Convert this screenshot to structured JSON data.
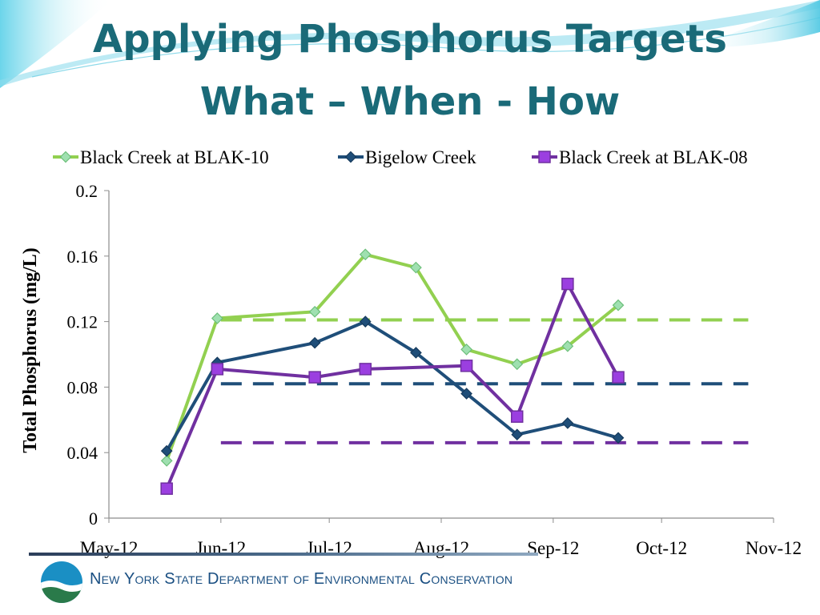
{
  "title": {
    "line1": "Applying Phosphorus Targets",
    "line2": "What – When - How"
  },
  "footer": {
    "org_name": "New York State Department of Environmental Conservation"
  },
  "chart_data": {
    "type": "line",
    "title": "",
    "ylabel": "Total Phosphorus (mg/L)",
    "xlabel": "",
    "ylim": [
      0,
      0.2
    ],
    "yticks": [
      0,
      0.04,
      0.08,
      0.12,
      0.16,
      0.2
    ],
    "ytick_labels": [
      "0",
      "0.04",
      "0.08",
      "0.12",
      "0.16",
      "0.2"
    ],
    "xlim": [
      "2012-05-01",
      "2012-11-01"
    ],
    "xticks": [
      "2012-05-01",
      "2012-06-01",
      "2012-07-01",
      "2012-08-01",
      "2012-09-01",
      "2012-10-01",
      "2012-11-01"
    ],
    "xtick_labels": [
      "May-12",
      "Jun-12",
      "Jul-12",
      "Aug-12",
      "Sep-12",
      "Oct-12",
      "Nov-12"
    ],
    "grid": false,
    "legend_position": "top",
    "series": [
      {
        "name": "Black Creek at BLAK-10",
        "color": "#92d050",
        "marker": "diamond",
        "x": [
          "2012-05-17",
          "2012-05-31",
          "2012-06-27",
          "2012-07-11",
          "2012-07-25",
          "2012-08-08",
          "2012-08-22",
          "2012-09-05",
          "2012-09-19"
        ],
        "y": [
          0.035,
          0.122,
          0.126,
          0.161,
          0.153,
          0.103,
          0.094,
          0.105,
          0.13
        ]
      },
      {
        "name": "Bigelow Creek",
        "color": "#1f4e79",
        "marker": "diamond",
        "x": [
          "2012-05-17",
          "2012-05-31",
          "2012-06-27",
          "2012-07-11",
          "2012-07-25",
          "2012-08-08",
          "2012-08-22",
          "2012-09-05",
          "2012-09-19"
        ],
        "y": [
          0.041,
          0.095,
          0.107,
          0.12,
          0.101,
          0.076,
          0.051,
          0.058,
          0.049
        ]
      },
      {
        "name": "Black Creek at BLAK-08",
        "color": "#7030a0",
        "marker": "square",
        "x": [
          "2012-05-17",
          "2012-05-31",
          "2012-06-27",
          "2012-07-11",
          "2012-08-08",
          "2012-08-22",
          "2012-09-05",
          "2012-09-19"
        ],
        "y": [
          0.018,
          0.091,
          0.086,
          0.091,
          0.093,
          0.062,
          0.143,
          0.086
        ]
      }
    ],
    "reference_lines": [
      {
        "color": "#92d050",
        "y": 0.121,
        "x": [
          "2012-06-01",
          "2012-10-25"
        ]
      },
      {
        "color": "#1f4e79",
        "y": 0.082,
        "x": [
          "2012-06-01",
          "2012-10-25"
        ]
      },
      {
        "color": "#7030a0",
        "y": 0.046,
        "x": [
          "2012-06-01",
          "2012-10-25"
        ]
      }
    ]
  }
}
